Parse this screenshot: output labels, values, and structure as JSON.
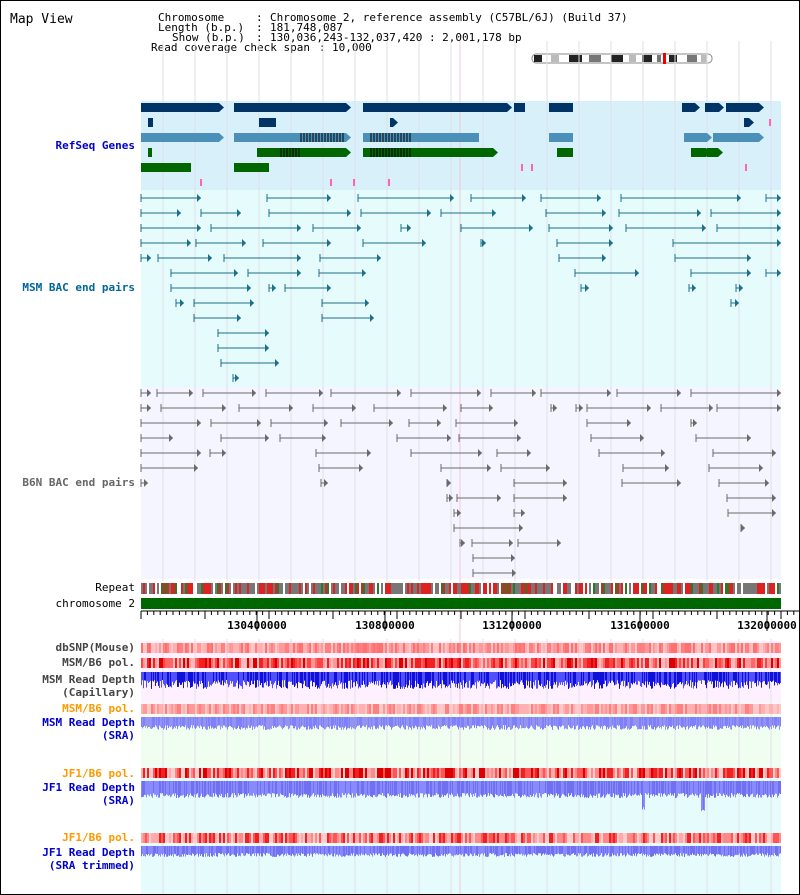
{
  "header": {
    "title": "Map View",
    "chromosome_label": "Chromosome",
    "chromosome_value": "Chromosome 2, reference assembly (C57BL/6J) (Build 37)",
    "length_label": "Length (b.p.)",
    "length_value": "181,748,087",
    "show_label": "Show (b.p.)",
    "show_value": "130,036,243-132,037,420 : 2,001,178 bp",
    "coverage_label": "Read coverage check span",
    "coverage_value": "10,000"
  },
  "tracks": {
    "refseq": {
      "label": "RefSeq Genes",
      "color": "#0000cc"
    },
    "msm_bac": {
      "label": "MSM BAC end pairs",
      "color": "#006699"
    },
    "b6n_bac": {
      "label": "B6N BAC end pairs",
      "color": "#666666"
    },
    "repeat": {
      "label": "Repeat",
      "color": "#000000"
    },
    "chromosome": {
      "label": "chromosome 2",
      "color": "#000000"
    },
    "dbsnp": {
      "label": "dbSNP(Mouse)",
      "color": "#444444"
    },
    "msm_b6_pol": {
      "label": "MSM/B6 pol.",
      "color": "#444444"
    },
    "msm_depth_cap": {
      "label1": "MSM Read Depth",
      "label2": "(Capillary)",
      "color": "#444444"
    },
    "msm_b6_pol2": {
      "label": "MSM/B6 pol.",
      "color": "#ff9900"
    },
    "msm_depth_sra": {
      "label1": "MSM Read Depth",
      "label2": "(SRA)",
      "color": "#0000cc"
    },
    "jf1_b6_pol": {
      "label": "JF1/B6 pol.",
      "color": "#ff9900"
    },
    "jf1_depth_sra": {
      "label1": "JF1 Read Depth",
      "label2": "(SRA)",
      "color": "#0000cc"
    },
    "jf1_b6_pol2": {
      "label": "JF1/B6 pol.",
      "color": "#ff9900"
    },
    "jf1_depth_trim": {
      "label1": "JF1 Read Depth",
      "label2": "(SRA trimmed)",
      "color": "#0000cc"
    }
  },
  "ruler": {
    "ticks": [
      "130400000",
      "130800000",
      "131200000",
      "131600000",
      "132000000"
    ]
  },
  "colors": {
    "refseq_dark": "#003366",
    "refseq_mid": "#4a90b8",
    "refseq_green": "#006600",
    "refseq_bg": "#d8f0fa",
    "msm_bg": "#e6fbfb",
    "b6n_bg": "#f5f5ff",
    "chromosome_bar": "#006600",
    "depth_blue": "#1a1aee",
    "depth_light": "#8080ff"
  }
}
